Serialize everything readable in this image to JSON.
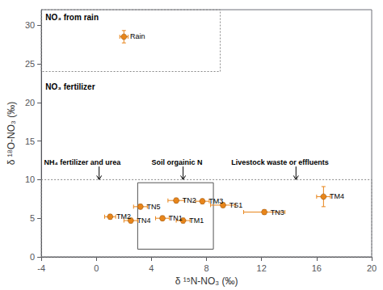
{
  "chart_data": {
    "type": "scatter",
    "xlabel": "δ ¹⁵N-NO₃ (‰)",
    "ylabel": "δ ¹⁸O-NO₃ (‰)",
    "color": "#E8851A",
    "points": [
      {
        "label": "Rain",
        "x": 2.0,
        "y": 28.5,
        "xerr": 0.3,
        "yerr": 0.8
      },
      {
        "label": "TM2",
        "x": 1.0,
        "y": 5.2,
        "xerr": 0.4,
        "yerr": 0.3
      },
      {
        "label": "TN4",
        "x": 2.5,
        "y": 4.7,
        "xerr": 0.5,
        "yerr": 0.3
      },
      {
        "label": "TN5",
        "x": 3.2,
        "y": 6.5,
        "xerr": 0.5,
        "yerr": 0.3
      },
      {
        "label": "TN1",
        "x": 4.8,
        "y": 5.0,
        "xerr": 0.5,
        "yerr": 0.3
      },
      {
        "label": "TN2",
        "x": 5.8,
        "y": 7.3,
        "xerr": 0.6,
        "yerr": 0.3
      },
      {
        "label": "TM1",
        "x": 6.3,
        "y": 4.7,
        "xerr": 0.5,
        "yerr": 0.3
      },
      {
        "label": "TM3",
        "x": 7.7,
        "y": 7.2,
        "xerr": 0.5,
        "yerr": 0.3
      },
      {
        "label": "TS1",
        "x": 9.2,
        "y": 6.7,
        "xerr": 0.9,
        "yerr": 0.3
      },
      {
        "label": "TN3",
        "x": 12.2,
        "y": 5.8,
        "xerr": 1.5,
        "yerr": 0.3
      },
      {
        "label": "TM4",
        "x": 16.5,
        "y": 7.8,
        "xerr": 0.5,
        "yerr": 1.3
      }
    ],
    "boxes": [
      {
        "x0": -4,
        "y0": 24,
        "x1": 9,
        "y1": 32,
        "line_style": "dotted"
      },
      {
        "x0": -4,
        "y0": 0,
        "x1": 20,
        "y1": 10,
        "line_style": "dotted"
      },
      {
        "x0": 3.0,
        "y0": 1.0,
        "x1": 8.5,
        "y1": 9.6,
        "line_style": "solid"
      }
    ],
    "annotations": [
      {
        "text": "NO₃ from rain",
        "x": -3.7,
        "y": 31.5
      },
      {
        "text": "NO₃ fertilizer",
        "x": -3.7,
        "y": 22.5
      },
      {
        "text": "NH₄ fertilizer and urea",
        "x": -3.8,
        "y": 11.8,
        "arrow_x": 0.2,
        "arrow_y": 10.0
      },
      {
        "text": "Soil orgainic N",
        "x": 4.0,
        "y": 11.8,
        "arrow_x": 6.3,
        "arrow_y": 10.0
      },
      {
        "text": "Livestock waste or effluents",
        "x": 9.8,
        "y": 11.8,
        "arrow_x": 14.5,
        "arrow_y": 10.0
      }
    ],
    "xlim": [
      -4,
      20
    ],
    "ylim": [
      0,
      32
    ],
    "xticks": [
      -4,
      0,
      4,
      8,
      12,
      16,
      20
    ],
    "yticks": [
      0,
      5,
      10,
      15,
      20,
      25,
      30
    ],
    "grid": false
  }
}
